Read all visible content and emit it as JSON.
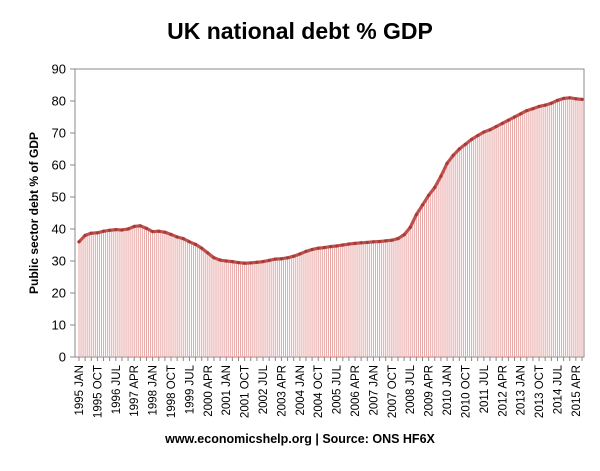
{
  "chart_data": {
    "type": "area",
    "title": "UK national debt % GDP",
    "ylabel": "Public sector debt % of GDP",
    "xlabel": "",
    "ylim": [
      0,
      90
    ],
    "yticks": [
      0,
      10,
      20,
      30,
      40,
      50,
      60,
      70,
      80,
      90
    ],
    "grid": false,
    "legend": "none",
    "line_color": "#c0504d",
    "fill_color": "#e8a6a4",
    "x_tick_labels": [
      "1995 JAN",
      "1995 OCT",
      "1996 JUL",
      "1997 APR",
      "1998 JAN",
      "1998 OCT",
      "1999 JUL",
      "2000 APR",
      "2001 JAN",
      "2001 OCT",
      "2002 JUL",
      "2003 APR",
      "2004 JAN",
      "2004 OCT",
      "2005 JUL",
      "2006 APR",
      "2007 JAN",
      "2007 OCT",
      "2008 JUL",
      "2009 APR",
      "2010 JAN",
      "2010 OCT",
      "2011 JUL",
      "2012 APR",
      "2013 JAN",
      "2013 OCT",
      "2014 JUL",
      "2015 APR"
    ],
    "x": [
      "1995-01",
      "1995-04",
      "1995-07",
      "1995-10",
      "1996-01",
      "1996-04",
      "1996-07",
      "1996-10",
      "1997-01",
      "1997-04",
      "1997-07",
      "1997-10",
      "1998-01",
      "1998-04",
      "1998-07",
      "1998-10",
      "1999-01",
      "1999-04",
      "1999-07",
      "1999-10",
      "2000-01",
      "2000-04",
      "2000-07",
      "2000-10",
      "2001-01",
      "2001-04",
      "2001-07",
      "2001-10",
      "2002-01",
      "2002-04",
      "2002-07",
      "2002-10",
      "2003-01",
      "2003-04",
      "2003-07",
      "2003-10",
      "2004-01",
      "2004-04",
      "2004-07",
      "2004-10",
      "2005-01",
      "2005-04",
      "2005-07",
      "2005-10",
      "2006-01",
      "2006-04",
      "2006-07",
      "2006-10",
      "2007-01",
      "2007-04",
      "2007-07",
      "2007-10",
      "2008-01",
      "2008-04",
      "2008-07",
      "2008-10",
      "2009-01",
      "2009-04",
      "2009-07",
      "2009-10",
      "2010-01",
      "2010-04",
      "2010-07",
      "2010-10",
      "2011-01",
      "2011-04",
      "2011-07",
      "2011-10",
      "2012-01",
      "2012-04",
      "2012-07",
      "2012-10",
      "2013-01",
      "2013-04",
      "2013-07",
      "2013-10",
      "2014-01",
      "2014-04",
      "2014-07",
      "2014-10",
      "2015-01",
      "2015-04",
      "2015-07"
    ],
    "values": [
      36.0,
      38.0,
      38.7,
      38.8,
      39.3,
      39.6,
      39.8,
      39.7,
      40.0,
      40.8,
      41.0,
      40.2,
      39.2,
      39.3,
      39.0,
      38.3,
      37.5,
      37.0,
      36.0,
      35.2,
      34.0,
      32.5,
      31.0,
      30.3,
      30.0,
      29.8,
      29.5,
      29.3,
      29.4,
      29.6,
      29.8,
      30.2,
      30.6,
      30.7,
      31.0,
      31.5,
      32.2,
      33.0,
      33.6,
      34.0,
      34.2,
      34.5,
      34.7,
      35.0,
      35.3,
      35.5,
      35.7,
      35.8,
      36.0,
      36.1,
      36.3,
      36.5,
      37.0,
      38.2,
      40.5,
      44.5,
      47.5,
      50.5,
      53.0,
      56.5,
      60.5,
      63.0,
      65.0,
      66.5,
      68.0,
      69.2,
      70.3,
      71.0,
      72.0,
      73.0,
      74.0,
      75.0,
      76.0,
      77.0,
      77.6,
      78.3,
      78.7,
      79.3,
      80.2,
      80.8,
      81.0,
      80.7,
      80.5
    ]
  },
  "footer": {
    "source": "www.economicshelp.org  |  Source: ONS HF6X"
  }
}
